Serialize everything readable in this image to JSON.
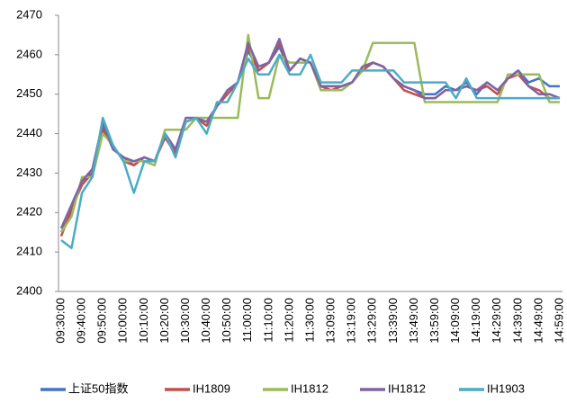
{
  "chart_data": {
    "type": "line",
    "categories": [
      "09:30:00",
      null,
      "09:40:00",
      null,
      "09:50:00",
      null,
      "10:00:00",
      null,
      "10:10:00",
      null,
      "10:20:00",
      null,
      "10:30:00",
      null,
      "10:40:00",
      null,
      "10:50:00",
      null,
      "11:00:00",
      null,
      "11:10:00",
      null,
      "11:20:00",
      null,
      "11:30:00",
      null,
      "13:09:00",
      null,
      "13:19:00",
      null,
      "13:29:00",
      null,
      "13:39:00",
      null,
      "13:49:00",
      null,
      "13:59:00",
      null,
      "14:09:00",
      null,
      "14:19:00",
      null,
      "14:29:00",
      null,
      "14:39:00",
      null,
      "14:49:00",
      null,
      "14:59:00"
    ],
    "series": [
      {
        "name": "上证50指数",
        "color": "#4472c4",
        "values": [
          2415,
          2420,
          2428,
          2430,
          2442,
          2436,
          2434,
          2432,
          2434,
          2433,
          2440,
          2436,
          2443,
          2444,
          2443,
          2447,
          2450,
          2453,
          2461,
          2456,
          2458,
          2462,
          2456,
          2459,
          2458,
          2452,
          2452,
          2452,
          2453,
          2456,
          2458,
          2457,
          2454,
          2452,
          2451,
          2450,
          2450,
          2452,
          2451,
          2453,
          2450,
          2453,
          2451,
          2454,
          2456,
          2453,
          2454,
          2452,
          2452
        ]
      },
      {
        "name": "IH1809",
        "color": "#c0504d",
        "values": [
          2414,
          2421,
          2427,
          2430,
          2441,
          2437,
          2433,
          2432,
          2434,
          2433,
          2439,
          2435,
          2443,
          2444,
          2442,
          2447,
          2450,
          2453,
          2462,
          2456,
          2458,
          2463,
          2456,
          2459,
          2458,
          2452,
          2451,
          2452,
          2453,
          2456,
          2458,
          2457,
          2454,
          2451,
          2450,
          2449,
          2449,
          2451,
          2451,
          2452,
          2451,
          2452,
          2450,
          2454,
          2455,
          2452,
          2451,
          2449,
          2449
        ]
      },
      {
        "name": "IH1812",
        "color": "#9bbb59",
        "values": [
          2415,
          2419,
          2429,
          2429,
          2440,
          2437,
          2433,
          2433,
          2433,
          2432,
          2441,
          2441,
          2441,
          2444,
          2444,
          2444,
          2444,
          2444,
          2465,
          2449,
          2449,
          2460,
          2458,
          2458,
          2458,
          2451,
          2451,
          2451,
          2453,
          2456,
          2463,
          2463,
          2463,
          2463,
          2463,
          2448,
          2448,
          2448,
          2448,
          2448,
          2448,
          2448,
          2448,
          2455,
          2455,
          2455,
          2455,
          2448,
          2448
        ]
      },
      {
        "name": "IH1812",
        "color": "#8064a2",
        "values": [
          2416,
          2422,
          2428,
          2431,
          2443,
          2436,
          2434,
          2433,
          2434,
          2433,
          2440,
          2436,
          2444,
          2444,
          2443,
          2447,
          2451,
          2453,
          2463,
          2457,
          2458,
          2464,
          2456,
          2459,
          2458,
          2452,
          2452,
          2452,
          2453,
          2457,
          2458,
          2457,
          2454,
          2452,
          2451,
          2449,
          2449,
          2451,
          2451,
          2452,
          2451,
          2453,
          2451,
          2454,
          2456,
          2452,
          2450,
          2450,
          2449
        ]
      },
      {
        "name": "IH1903",
        "color": "#4bacc6",
        "values": [
          2413,
          2411,
          2425,
          2429,
          2444,
          2437,
          2433,
          2425,
          2433,
          2433,
          2440,
          2434,
          2443,
          2444,
          2440,
          2448,
          2448,
          2453,
          2459,
          2455,
          2455,
          2460,
          2455,
          2455,
          2460,
          2453,
          2453,
          2453,
          2456,
          2456,
          2456,
          2456,
          2456,
          2453,
          2453,
          2453,
          2453,
          2453,
          2449,
          2454,
          2449,
          2449,
          2449,
          2449,
          2449,
          2449,
          2449,
          2449,
          2449
        ]
      }
    ],
    "ylim": [
      2400,
      2470
    ],
    "yticks": [
      2400,
      2410,
      2420,
      2430,
      2440,
      2450,
      2460,
      2470
    ],
    "grid": false,
    "legend": "bottom"
  }
}
